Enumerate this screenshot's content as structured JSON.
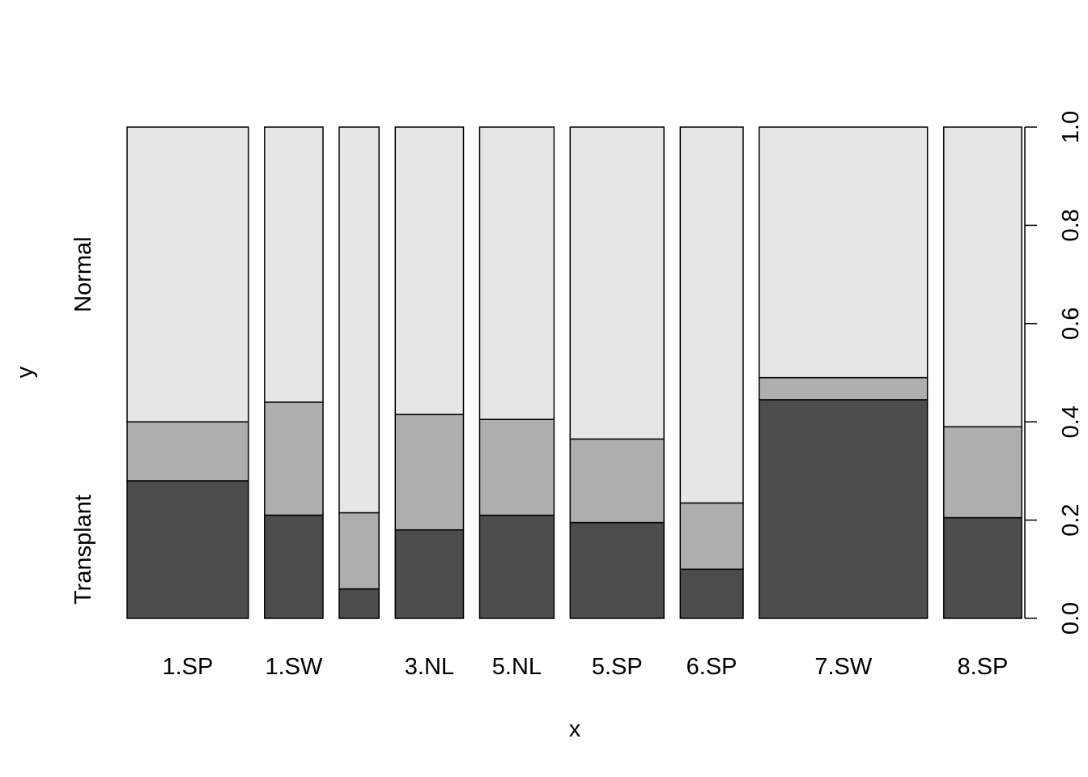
{
  "chart_data": {
    "type": "bar",
    "subtype": "spineplot",
    "xlabel": "x",
    "ylabel": "y",
    "y_levels_left": [
      "Transplant",
      "Normal"
    ],
    "y_axis_right": {
      "ticks": [
        "0.0",
        "0.2",
        "0.4",
        "0.6",
        "0.8",
        "1.0"
      ],
      "ylim": [
        0,
        1
      ]
    },
    "colors": [
      "#4d4d4d",
      "#aeaeae",
      "#e6e6e6"
    ],
    "categories": [
      "1.SP",
      "1.SW",
      "",
      "3.NL",
      "5.NL",
      "5.SP",
      "6.SP",
      "7.SW",
      "8.SP"
    ],
    "x_tick_labels": [
      "1.SP",
      "1.SW",
      "",
      "3.NL",
      "5.NL",
      "5.SP",
      "6.SP",
      "7.SW",
      "8.SP"
    ],
    "widths": [
      0.137,
      0.066,
      0.045,
      0.077,
      0.084,
      0.106,
      0.071,
      0.19,
      0.088
    ],
    "series": [
      {
        "values": [
          0.28,
          0.21,
          0.06,
          0.18,
          0.21,
          0.195,
          0.1,
          0.445,
          0.205
        ]
      },
      {
        "values": [
          0.12,
          0.23,
          0.155,
          0.235,
          0.195,
          0.17,
          0.135,
          0.045,
          0.185
        ]
      },
      {
        "values": [
          0.6,
          0.56,
          0.785,
          0.585,
          0.595,
          0.635,
          0.765,
          0.51,
          0.61
        ]
      }
    ],
    "grid": false,
    "legend": "none"
  }
}
